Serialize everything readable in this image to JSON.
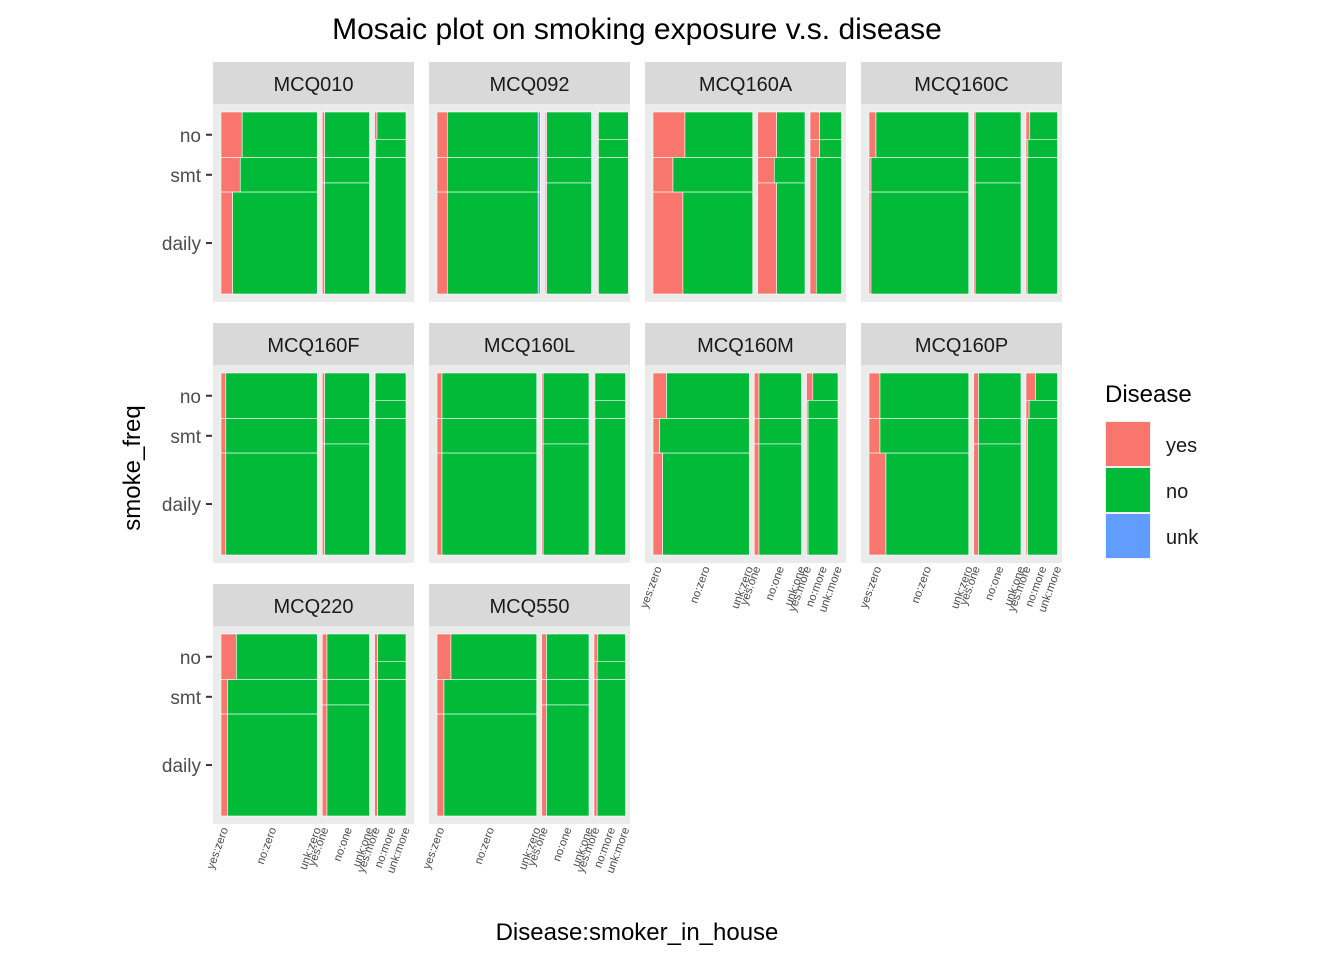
{
  "chart_data": {
    "type": "mosaic",
    "title": "Mosaic plot on smoking exposure v.s. disease",
    "xlabel": "Disease:smoker_in_house",
    "ylabel": "smoke_freq",
    "legend": {
      "title": "Disease",
      "placement": "right",
      "items": [
        {
          "label": "yes",
          "color": "#F8766D"
        },
        {
          "label": "no",
          "color": "#00BA38"
        },
        {
          "label": "unk",
          "color": "#619CFF"
        }
      ]
    },
    "x_categories": [
      "yes:zero",
      "no:zero",
      "unk:zero",
      "yes:one",
      "no:one",
      "unk:one",
      "yes:more",
      "no:more",
      "unk:more"
    ],
    "y_categories": [
      "no",
      "smt",
      "daily"
    ],
    "smoker_in_house_levels": [
      "zero",
      "one",
      "more"
    ],
    "disease_levels": [
      "yes",
      "no",
      "unk"
    ],
    "panels": [
      {
        "name": "MCQ010",
        "house_share": [
          0.55,
          0.27,
          0.18
        ],
        "smoke_freq_share": [
          [
            0.25,
            0.19,
            0.56
          ],
          [
            0.25,
            0.14,
            0.61
          ],
          [
            0.15,
            0.1,
            0.75
          ]
        ],
        "disease_share": [
          [
            [
              0.22,
              0.78,
              0
            ],
            [
              0.2,
              0.8,
              0
            ],
            [
              0.12,
              0.88,
              0
            ]
          ],
          [
            [
              0.05,
              0.95,
              0
            ],
            [
              0.05,
              0.95,
              0
            ],
            [
              0.05,
              0.95,
              0
            ]
          ],
          [
            [
              0.08,
              0.92,
              0
            ],
            [
              0.04,
              0.96,
              0
            ],
            [
              0.02,
              0.98,
              0
            ]
          ]
        ]
      },
      {
        "name": "MCQ092",
        "house_share": [
          0.59,
          0.27,
          0.18
        ],
        "smoke_freq_share": [
          [
            0.25,
            0.19,
            0.56
          ],
          [
            0.25,
            0.14,
            0.61
          ],
          [
            0.15,
            0.1,
            0.75
          ]
        ],
        "disease_share": [
          [
            [
              0.1,
              0.88,
              0.02
            ],
            [
              0.1,
              0.88,
              0.02
            ],
            [
              0.1,
              0.88,
              0.02
            ]
          ],
          [
            [
              0.03,
              0.95,
              0.02
            ],
            [
              0.03,
              0.95,
              0.02
            ],
            [
              0.03,
              0.95,
              0.02
            ]
          ],
          [
            [
              0.03,
              0.95,
              0.02
            ],
            [
              0.03,
              0.95,
              0.02
            ],
            [
              0.03,
              0.95,
              0.02
            ]
          ]
        ]
      },
      {
        "name": "MCQ160A",
        "house_share": [
          0.57,
          0.27,
          0.18
        ],
        "smoke_freq_share": [
          [
            0.25,
            0.19,
            0.56
          ],
          [
            0.25,
            0.14,
            0.61
          ],
          [
            0.15,
            0.1,
            0.75
          ]
        ],
        "disease_share": [
          [
            [
              0.32,
              0.68,
              0
            ],
            [
              0.2,
              0.8,
              0
            ],
            [
              0.3,
              0.7,
              0
            ]
          ],
          [
            [
              0.4,
              0.6,
              0
            ],
            [
              0.35,
              0.65,
              0
            ],
            [
              0.4,
              0.6,
              0
            ]
          ],
          [
            [
              0.3,
              0.7,
              0
            ],
            [
              0.3,
              0.7,
              0
            ],
            [
              0.2,
              0.8,
              0
            ]
          ]
        ]
      },
      {
        "name": "MCQ160C",
        "house_share": [
          0.57,
          0.27,
          0.18
        ],
        "smoke_freq_share": [
          [
            0.25,
            0.19,
            0.56
          ],
          [
            0.25,
            0.14,
            0.61
          ],
          [
            0.15,
            0.1,
            0.75
          ]
        ],
        "disease_share": [
          [
            [
              0.07,
              0.93,
              0
            ],
            [
              0.02,
              0.98,
              0
            ],
            [
              0.02,
              0.98,
              0
            ]
          ],
          [
            [
              0.03,
              0.97,
              0
            ],
            [
              0.03,
              0.97,
              0
            ],
            [
              0.03,
              0.97,
              0
            ]
          ],
          [
            [
              0.12,
              0.88,
              0
            ],
            [
              0.06,
              0.94,
              0
            ],
            [
              0.04,
              0.96,
              0
            ]
          ]
        ]
      },
      {
        "name": "MCQ160F",
        "house_share": [
          0.55,
          0.27,
          0.18
        ],
        "smoke_freq_share": [
          [
            0.25,
            0.19,
            0.56
          ],
          [
            0.25,
            0.14,
            0.61
          ],
          [
            0.15,
            0.1,
            0.75
          ]
        ],
        "disease_share": [
          [
            [
              0.05,
              0.95,
              0
            ],
            [
              0.05,
              0.95,
              0
            ],
            [
              0.05,
              0.95,
              0
            ]
          ],
          [
            [
              0.05,
              0.95,
              0
            ],
            [
              0.05,
              0.95,
              0
            ],
            [
              0.05,
              0.95,
              0
            ]
          ],
          [
            [
              0.02,
              0.98,
              0
            ],
            [
              0.02,
              0.98,
              0
            ],
            [
              0.02,
              0.98,
              0
            ]
          ]
        ]
      },
      {
        "name": "MCQ160L",
        "house_share": [
          0.57,
          0.27,
          0.18
        ],
        "smoke_freq_share": [
          [
            0.25,
            0.19,
            0.56
          ],
          [
            0.25,
            0.14,
            0.61
          ],
          [
            0.15,
            0.1,
            0.75
          ]
        ],
        "disease_share": [
          [
            [
              0.05,
              0.95,
              0
            ],
            [
              0.05,
              0.95,
              0
            ],
            [
              0.05,
              0.95,
              0
            ]
          ],
          [
            [
              0.03,
              0.97,
              0
            ],
            [
              0.03,
              0.97,
              0
            ],
            [
              0.03,
              0.97,
              0
            ]
          ],
          [
            [
              0.03,
              0.97,
              0
            ],
            [
              0.03,
              0.97,
              0
            ],
            [
              0.03,
              0.97,
              0
            ]
          ]
        ]
      },
      {
        "name": "MCQ160M",
        "house_share": [
          0.55,
          0.27,
          0.18
        ],
        "smoke_freq_share": [
          [
            0.25,
            0.19,
            0.56
          ],
          [
            0.25,
            0.14,
            0.61
          ],
          [
            0.15,
            0.1,
            0.75
          ]
        ],
        "disease_share": [
          [
            [
              0.14,
              0.86,
              0
            ],
            [
              0.07,
              0.93,
              0
            ],
            [
              0.1,
              0.9,
              0
            ]
          ],
          [
            [
              0.1,
              0.9,
              0
            ],
            [
              0.1,
              0.9,
              0
            ],
            [
              0.1,
              0.9,
              0
            ]
          ],
          [
            [
              0.2,
              0.8,
              0
            ],
            [
              0.05,
              0.95,
              0
            ],
            [
              0.05,
              0.95,
              0
            ]
          ]
        ]
      },
      {
        "name": "MCQ160P",
        "house_share": [
          0.57,
          0.27,
          0.18
        ],
        "smoke_freq_share": [
          [
            0.25,
            0.19,
            0.56
          ],
          [
            0.25,
            0.14,
            0.61
          ],
          [
            0.15,
            0.1,
            0.75
          ]
        ],
        "disease_share": [
          [
            [
              0.11,
              0.89,
              0
            ],
            [
              0.11,
              0.89,
              0
            ],
            [
              0.17,
              0.83,
              0
            ]
          ],
          [
            [
              0.1,
              0.9,
              0
            ],
            [
              0.1,
              0.9,
              0
            ],
            [
              0.1,
              0.9,
              0
            ]
          ],
          [
            [
              0.3,
              0.7,
              0
            ],
            [
              0.1,
              0.9,
              0
            ],
            [
              0.05,
              0.95,
              0
            ]
          ]
        ]
      },
      {
        "name": "MCQ220",
        "house_share": [
          0.55,
          0.27,
          0.18
        ],
        "smoke_freq_share": [
          [
            0.25,
            0.19,
            0.56
          ],
          [
            0.25,
            0.14,
            0.61
          ],
          [
            0.15,
            0.1,
            0.75
          ]
        ],
        "disease_share": [
          [
            [
              0.16,
              0.84,
              0
            ],
            [
              0.07,
              0.93,
              0
            ],
            [
              0.07,
              0.93,
              0
            ]
          ],
          [
            [
              0.1,
              0.9,
              0
            ],
            [
              0.1,
              0.9,
              0
            ],
            [
              0.1,
              0.9,
              0
            ]
          ],
          [
            [
              0.1,
              0.9,
              0
            ],
            [
              0.1,
              0.9,
              0
            ],
            [
              0.1,
              0.9,
              0
            ]
          ]
        ]
      },
      {
        "name": "MCQ550",
        "house_share": [
          0.57,
          0.27,
          0.18
        ],
        "smoke_freq_share": [
          [
            0.25,
            0.19,
            0.56
          ],
          [
            0.25,
            0.14,
            0.61
          ],
          [
            0.15,
            0.1,
            0.75
          ]
        ],
        "disease_share": [
          [
            [
              0.14,
              0.86,
              0
            ],
            [
              0.07,
              0.93,
              0
            ],
            [
              0.07,
              0.93,
              0
            ]
          ],
          [
            [
              0.1,
              0.9,
              0
            ],
            [
              0.1,
              0.9,
              0
            ],
            [
              0.1,
              0.9,
              0
            ]
          ],
          [
            [
              0.12,
              0.88,
              0
            ],
            [
              0.1,
              0.9,
              0
            ],
            [
              0.1,
              0.9,
              0
            ]
          ]
        ]
      }
    ]
  }
}
